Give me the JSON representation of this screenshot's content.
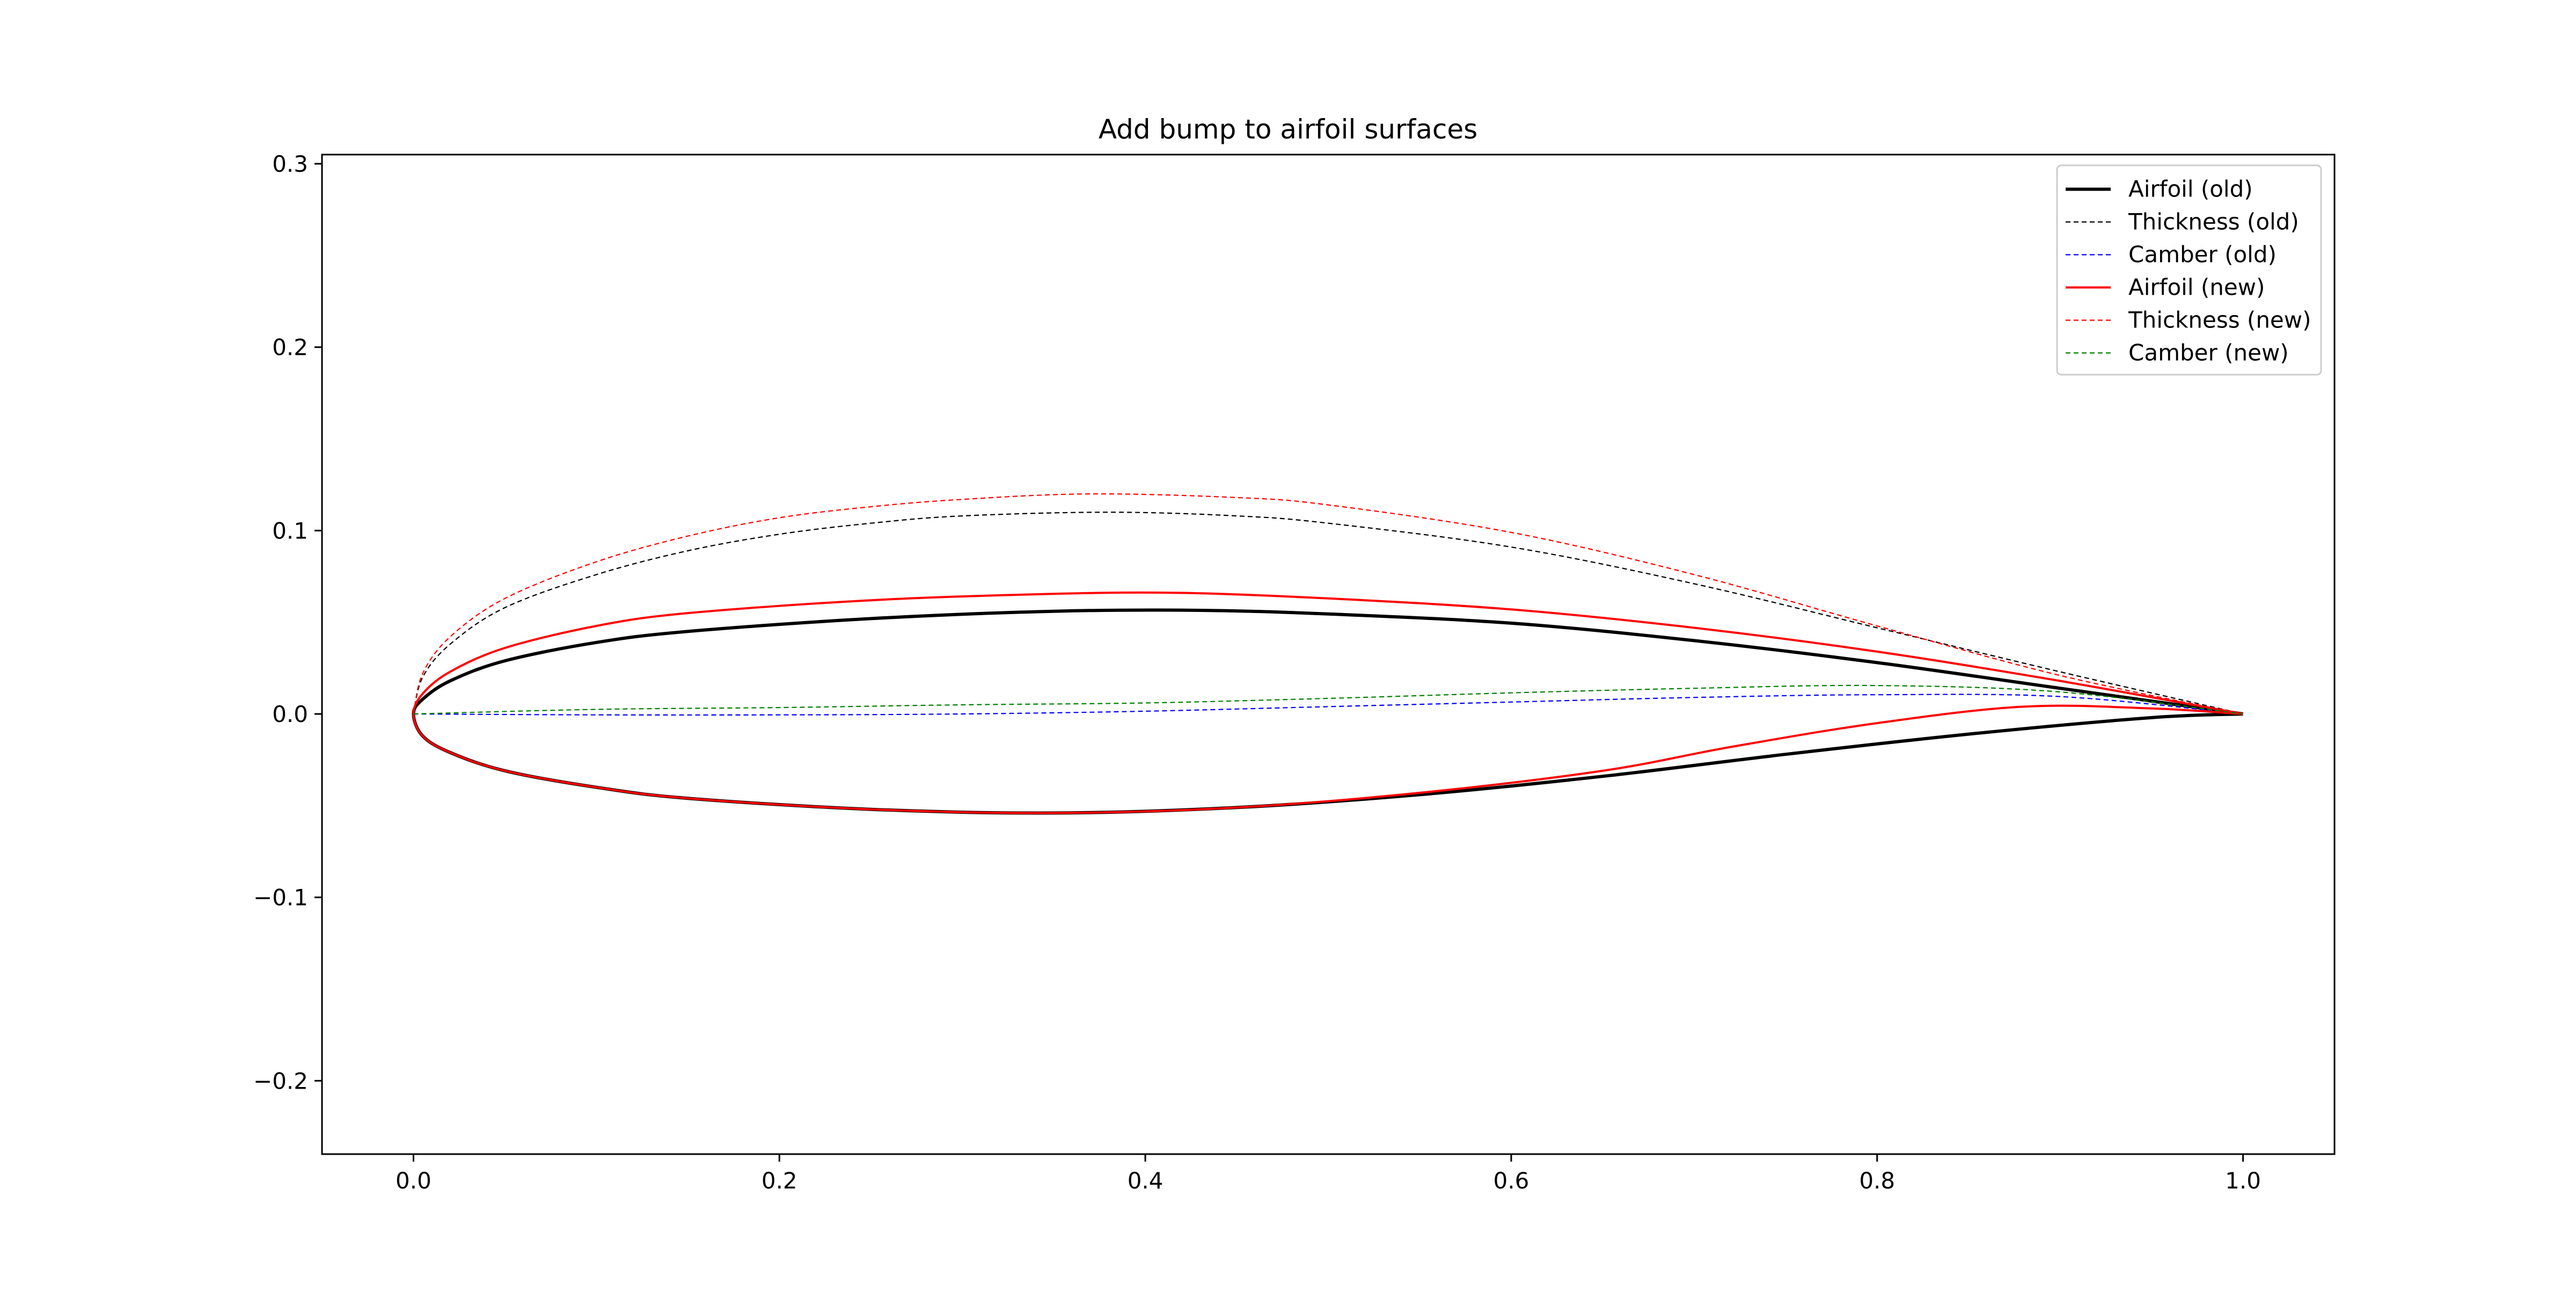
{
  "chart_data": {
    "type": "line",
    "title": "Add bump to airfoil surfaces",
    "xlabel": "",
    "ylabel": "",
    "xlim": [
      -0.05,
      1.05
    ],
    "ylim": [
      -0.24,
      0.305
    ],
    "xticks": [
      0.0,
      0.2,
      0.4,
      0.6,
      0.8,
      1.0
    ],
    "xtick_labels": [
      "0.0",
      "0.2",
      "0.4",
      "0.6",
      "0.8",
      "1.0"
    ],
    "yticks": [
      -0.2,
      -0.1,
      0.0,
      0.1,
      0.2,
      0.3
    ],
    "ytick_labels": [
      "−0.2",
      "−0.1",
      "0.0",
      "0.1",
      "0.2",
      "0.3"
    ],
    "grid": false,
    "legend_position": "top-right",
    "series": [
      {
        "name": "Airfoil (old)",
        "color": "#000000",
        "style": "solid",
        "weight": "thick",
        "x": [
          1.0,
          0.9,
          0.8,
          0.7,
          0.6,
          0.5,
          0.43,
          0.35,
          0.25,
          0.15,
          0.1,
          0.05,
          0.02,
          0.005,
          0.0,
          0.005,
          0.02,
          0.05,
          0.1,
          0.15,
          0.25,
          0.35,
          0.45,
          0.55,
          0.65,
          0.75,
          0.85,
          0.95,
          1.0
        ],
        "y": [
          0.0,
          0.014,
          0.028,
          0.04,
          0.0495,
          0.0545,
          0.0565,
          0.056,
          0.052,
          0.045,
          0.039,
          0.029,
          0.018,
          0.008,
          0.0,
          -0.012,
          -0.021,
          -0.031,
          -0.04,
          -0.046,
          -0.052,
          -0.054,
          -0.051,
          -0.044,
          -0.034,
          -0.022,
          -0.011,
          -0.002,
          0.0
        ]
      },
      {
        "name": "Thickness (old)",
        "color": "#000000",
        "style": "dashed",
        "weight": "thin",
        "x": [
          0.0,
          0.005,
          0.02,
          0.05,
          0.1,
          0.15,
          0.2,
          0.25,
          0.3,
          0.38,
          0.45,
          0.5,
          0.6,
          0.7,
          0.8,
          0.9,
          1.0
        ],
        "y": [
          0.0,
          0.02,
          0.038,
          0.058,
          0.076,
          0.089,
          0.098,
          0.104,
          0.108,
          0.11,
          0.108,
          0.104,
          0.091,
          0.071,
          0.047,
          0.023,
          0.0
        ]
      },
      {
        "name": "Camber (old)",
        "color": "#0000ff",
        "style": "dashed",
        "weight": "thin",
        "x": [
          0.0,
          0.1,
          0.2,
          0.3,
          0.4,
          0.5,
          0.6,
          0.7,
          0.8,
          0.9,
          1.0
        ],
        "y": [
          0.0,
          -0.0005,
          -0.0005,
          0.0,
          0.0015,
          0.004,
          0.0065,
          0.009,
          0.0105,
          0.0095,
          0.0
        ]
      },
      {
        "name": "Airfoil (new)",
        "color": "#ff0000",
        "style": "solid",
        "weight": "normal",
        "x": [
          1.0,
          0.9,
          0.8,
          0.7,
          0.6,
          0.5,
          0.42,
          0.35,
          0.25,
          0.15,
          0.1,
          0.05,
          0.02,
          0.005,
          0.0,
          0.005,
          0.02,
          0.05,
          0.1,
          0.15,
          0.25,
          0.35,
          0.45,
          0.55,
          0.65,
          0.72,
          0.8,
          0.88,
          0.95,
          1.0
        ],
        "y": [
          0.0,
          0.018,
          0.034,
          0.047,
          0.057,
          0.063,
          0.066,
          0.0655,
          0.062,
          0.055,
          0.048,
          0.036,
          0.023,
          0.011,
          0.0,
          -0.012,
          -0.021,
          -0.031,
          -0.04,
          -0.046,
          -0.052,
          -0.054,
          -0.051,
          -0.043,
          -0.031,
          -0.018,
          -0.005,
          0.004,
          0.003,
          0.0
        ]
      },
      {
        "name": "Thickness (new)",
        "color": "#ff0000",
        "style": "dashed",
        "weight": "thin",
        "x": [
          0.0,
          0.005,
          0.02,
          0.05,
          0.1,
          0.15,
          0.2,
          0.25,
          0.3,
          0.37,
          0.45,
          0.5,
          0.6,
          0.7,
          0.8,
          0.9,
          1.0
        ],
        "y": [
          0.0,
          0.022,
          0.042,
          0.063,
          0.083,
          0.097,
          0.107,
          0.113,
          0.117,
          0.12,
          0.118,
          0.114,
          0.099,
          0.076,
          0.048,
          0.021,
          0.0
        ]
      },
      {
        "name": "Camber (new)",
        "color": "#008000",
        "style": "dashed",
        "weight": "thin",
        "x": [
          0.0,
          0.1,
          0.2,
          0.3,
          0.4,
          0.5,
          0.6,
          0.7,
          0.8,
          0.9,
          1.0
        ],
        "y": [
          0.0,
          0.0025,
          0.0035,
          0.005,
          0.006,
          0.0085,
          0.0115,
          0.014,
          0.0155,
          0.012,
          0.0
        ]
      }
    ]
  }
}
